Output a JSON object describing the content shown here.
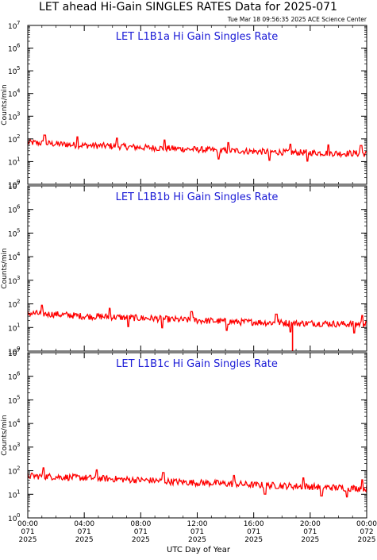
{
  "header": {
    "title": "LET ahead Hi-Gain SINGLES RATES Data for 2025-071",
    "timestamp": "Tue Mar 18 09:56:35 2025 ACE Science Center"
  },
  "colors": {
    "series": "#ff0000",
    "panel_title": "#1a1ad6",
    "axes": "#000000"
  },
  "xaxis": {
    "label": "UTC Day of Year",
    "ticks": [
      {
        "time": "00:00",
        "doy": "071",
        "year": "2025"
      },
      {
        "time": "04:00",
        "doy": "071",
        "year": "2025"
      },
      {
        "time": "08:00",
        "doy": "071",
        "year": "2025"
      },
      {
        "time": "12:00",
        "doy": "071",
        "year": "2025"
      },
      {
        "time": "16:00",
        "doy": "071",
        "year": "2025"
      },
      {
        "time": "20:00",
        "doy": "071",
        "year": "2025"
      },
      {
        "time": "00:00",
        "doy": "072",
        "year": "2025"
      }
    ]
  },
  "chart_data": [
    {
      "type": "line",
      "title": "LET L1B1a Hi Gain Singles Rate",
      "ylabel": "Counts/min",
      "yscale": "log",
      "ylim": [
        1,
        10000000
      ],
      "ytick_base": "10",
      "ytick_exponents": [
        "0",
        "1",
        "2",
        "3",
        "4",
        "5",
        "6",
        "7"
      ],
      "xlim_hours": [
        0,
        24
      ],
      "x_hours": [
        0,
        1,
        2,
        3,
        4,
        5,
        6,
        7,
        8,
        9,
        10,
        11,
        12,
        13,
        14,
        15,
        16,
        17,
        18,
        19,
        20,
        21,
        22,
        23,
        24
      ],
      "values": [
        70,
        65,
        60,
        55,
        52,
        50,
        48,
        45,
        42,
        40,
        38,
        36,
        34,
        32,
        30,
        30,
        28,
        27,
        26,
        25,
        25,
        24,
        23,
        23,
        22
      ],
      "spikes_hours": [
        1.2,
        3.5,
        6.3,
        9.7,
        14.2,
        18.6,
        21.3,
        23.6
      ],
      "dips_hours": [
        13.5,
        17.1,
        19.8
      ],
      "grid": false
    },
    {
      "type": "line",
      "title": "LET L1B1b Hi Gain Singles Rate",
      "ylabel": "Counts/min",
      "yscale": "log",
      "ylim": [
        1,
        10000000
      ],
      "ytick_base": "10",
      "ytick_exponents": [
        "0",
        "1",
        "2",
        "3",
        "4",
        "5",
        "6",
        "7"
      ],
      "xlim_hours": [
        0,
        24
      ],
      "x_hours": [
        0,
        1,
        2,
        3,
        4,
        5,
        6,
        7,
        8,
        9,
        10,
        11,
        12,
        13,
        14,
        15,
        16,
        17,
        18,
        19,
        20,
        21,
        22,
        23,
        24
      ],
      "values": [
        40,
        38,
        36,
        33,
        30,
        29,
        28,
        26,
        25,
        24,
        22,
        21,
        20,
        19,
        18,
        17,
        17,
        16,
        16,
        15,
        15,
        15,
        14,
        14,
        14
      ],
      "spikes_hours": [
        1.0,
        5.8,
        11.6,
        17.6,
        23.7
      ],
      "dips_hours": [
        7.1,
        9.5,
        14.1,
        18.6,
        23.1
      ],
      "grid": false
    },
    {
      "type": "line",
      "title": "LET L1B1c Hi Gain Singles Rate",
      "ylabel": "Counts/min",
      "yscale": "log",
      "ylim": [
        1,
        10000000
      ],
      "ytick_base": "10",
      "ytick_exponents": [
        "0",
        "1",
        "2",
        "3",
        "4",
        "5",
        "6",
        "7"
      ],
      "xlim_hours": [
        0,
        24
      ],
      "x_hours": [
        0,
        1,
        2,
        3,
        4,
        5,
        6,
        7,
        8,
        9,
        10,
        11,
        12,
        13,
        14,
        15,
        16,
        17,
        18,
        19,
        20,
        21,
        22,
        23,
        24
      ],
      "values": [
        60,
        58,
        55,
        52,
        50,
        47,
        45,
        42,
        40,
        38,
        35,
        33,
        31,
        30,
        28,
        27,
        25,
        24,
        23,
        22,
        21,
        20,
        19,
        18,
        18
      ],
      "spikes_hours": [
        1.1,
        4.9,
        9.6,
        14.6,
        19.5,
        23.7
      ],
      "dips_hours": [
        16.8,
        20.8,
        22.6
      ],
      "grid": false
    }
  ]
}
